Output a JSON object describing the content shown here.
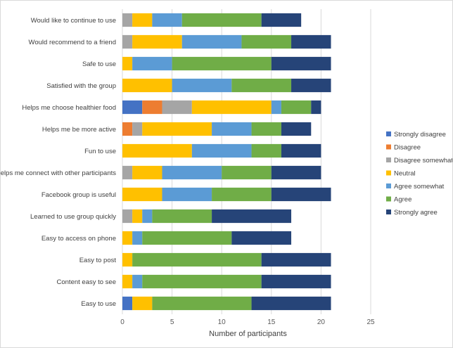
{
  "chart_data": {
    "type": "bar",
    "orientation": "horizontal",
    "stacked": true,
    "title": "",
    "xlabel": "Number of participants",
    "ylabel": "",
    "xlim": [
      0,
      25
    ],
    "xticks": [
      0,
      5,
      10,
      15,
      20,
      25
    ],
    "grid": true,
    "legend_position": "right",
    "categories": [
      "Would like to continue to use",
      "Would recommend to a friend",
      "Safe to use",
      "Satisfied with the group",
      "Helps me choose healthier food",
      "Helps me be more active",
      "Fun to use",
      "Helps me connect with other participants",
      "Facebook group is useful",
      "Learned to use group quickly",
      "Easy to access on phone",
      "Easy to post",
      "Content easy to see",
      "Easy to use"
    ],
    "series": [
      {
        "name": "Strongly disagree",
        "color": "#4472c4",
        "values": [
          0,
          0,
          0,
          0,
          2,
          0,
          0,
          0,
          0,
          0,
          0,
          0,
          0,
          1
        ]
      },
      {
        "name": "Disagree",
        "color": "#ed7d31",
        "values": [
          0,
          0,
          0,
          0,
          2,
          1,
          0,
          0,
          0,
          0,
          0,
          0,
          0,
          0
        ]
      },
      {
        "name": "Disagree somewhat",
        "color": "#a5a5a5",
        "values": [
          1,
          1,
          0,
          0,
          3,
          1,
          0,
          1,
          0,
          1,
          0,
          0,
          0,
          0
        ]
      },
      {
        "name": "Neutral",
        "color": "#ffc000",
        "values": [
          2,
          5,
          1,
          5,
          8,
          7,
          7,
          3,
          4,
          1,
          1,
          1,
          1,
          2
        ]
      },
      {
        "name": "Agree somewhat",
        "color": "#5b9bd5",
        "values": [
          3,
          6,
          4,
          6,
          1,
          4,
          6,
          6,
          5,
          1,
          1,
          0,
          1,
          0
        ]
      },
      {
        "name": "Agree",
        "color": "#70ad47",
        "values": [
          8,
          5,
          10,
          6,
          3,
          3,
          3,
          5,
          6,
          6,
          9,
          13,
          12,
          10
        ]
      },
      {
        "name": "Strongly agree",
        "color": "#264478",
        "values": [
          4,
          4,
          6,
          4,
          1,
          3,
          4,
          5,
          6,
          8,
          6,
          7,
          7,
          8
        ]
      }
    ]
  }
}
